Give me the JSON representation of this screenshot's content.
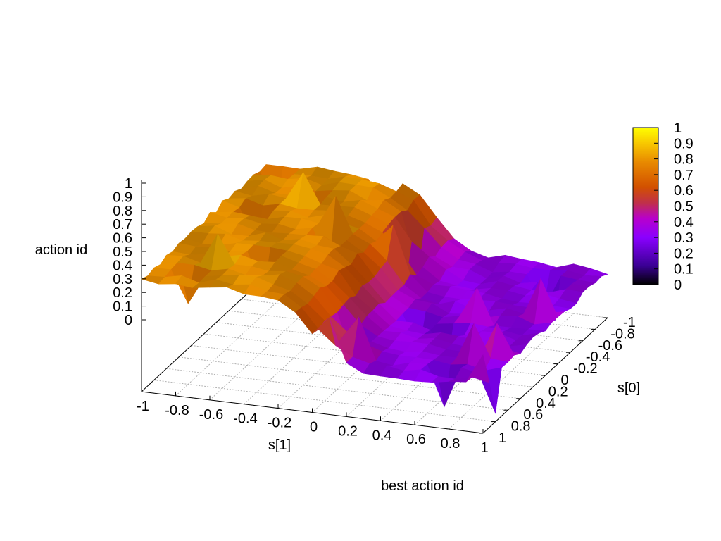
{
  "chart_data": {
    "type": "surface",
    "title": "best action id",
    "xlabel": "s[1]",
    "ylabel": "s[0]",
    "zlabel": "action id",
    "x_range": [
      -1,
      1
    ],
    "y_range": [
      -1,
      1
    ],
    "z_range": [
      0,
      1
    ],
    "x_ticks": [
      "-1",
      "-0.8",
      "-0.6",
      "-0.4",
      "-0.2",
      "0",
      "0.2",
      "0.4",
      "0.6",
      "0.8",
      "1"
    ],
    "y_ticks": [
      "-1",
      "-0.8",
      "-0.6",
      "-0.4",
      "-0.2",
      "0",
      "0.2",
      "0.4",
      "0.6",
      "0.8",
      "1"
    ],
    "z_ticks": [
      "1",
      "0.9",
      "0.8",
      "0.7",
      "0.6",
      "0.5",
      "0.4",
      "0.3",
      "0.2",
      "0.1",
      "0"
    ],
    "colorbar_ticks": [
      "1",
      "0.9",
      "0.8",
      "0.7",
      "0.6",
      "0.5",
      "0.4",
      "0.3",
      "0.2",
      "0.1",
      "0"
    ],
    "grid": true,
    "colorbar": "right",
    "palette": [
      "#000000",
      "#3a0094",
      "#8a00ff",
      "#b800cc",
      "#c0304a",
      "#d25000",
      "#e88a00",
      "#f8c800",
      "#ffff00"
    ],
    "surface": {
      "grid_size": 21,
      "low_value": 0.33,
      "high_value": 0.8,
      "transition_s1": 0.0,
      "description_values": "z ≈ 0.8 for s[1] < 0, ≈ 0.33 for s[1] > 0"
    }
  }
}
